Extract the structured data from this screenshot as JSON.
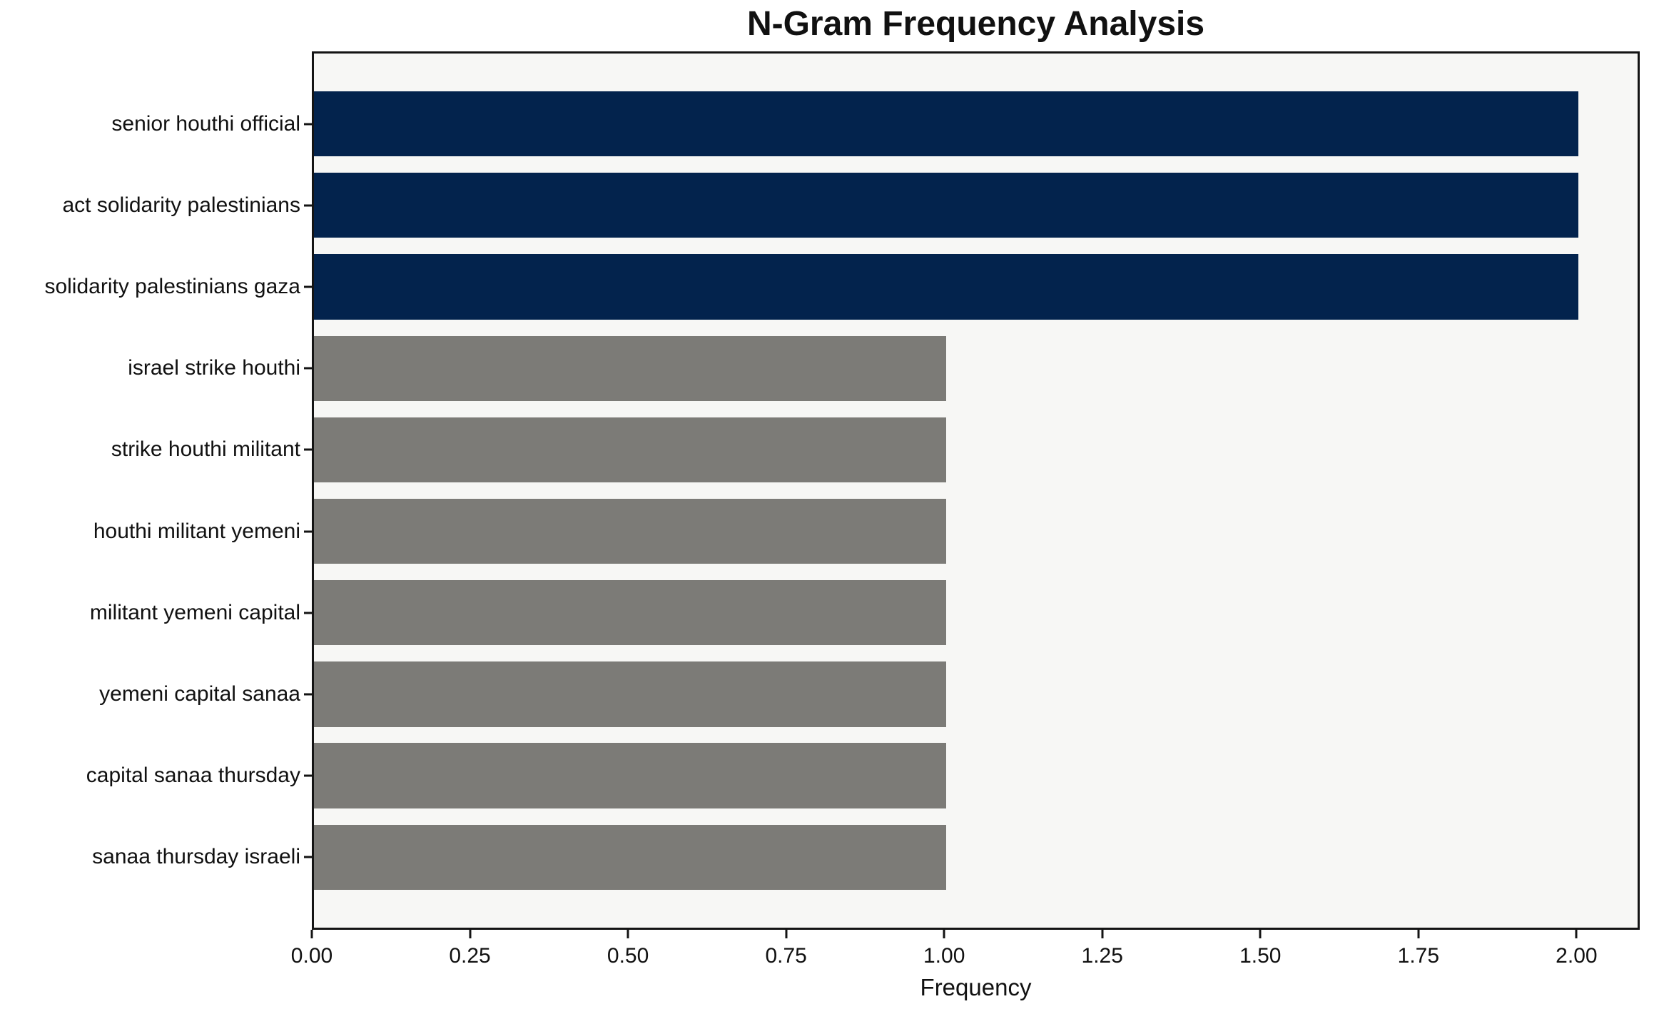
{
  "chart_data": {
    "type": "bar",
    "orientation": "horizontal",
    "title": "N-Gram Frequency Analysis",
    "xlabel": "Frequency",
    "ylabel": "",
    "categories": [
      "senior houthi official",
      "act solidarity palestinians",
      "solidarity palestinians gaza",
      "israel strike houthi",
      "strike houthi militant",
      "houthi militant yemeni",
      "militant yemeni capital",
      "yemeni capital sanaa",
      "capital sanaa thursday",
      "sanaa thursday israeli"
    ],
    "values": [
      2,
      2,
      2,
      1,
      1,
      1,
      1,
      1,
      1,
      1
    ],
    "colors": [
      "#03234D",
      "#03234D",
      "#03234D",
      "#7C7B77",
      "#7C7B77",
      "#7C7B77",
      "#7C7B77",
      "#7C7B77",
      "#7C7B77",
      "#7C7B77"
    ],
    "bar_color_legend": {
      "highlight": "#03234D",
      "default": "#7C7B77"
    },
    "xlim": [
      0,
      2.1
    ],
    "xticks": [
      {
        "value": 0.0,
        "label": "0.00"
      },
      {
        "value": 0.25,
        "label": "0.25"
      },
      {
        "value": 0.5,
        "label": "0.50"
      },
      {
        "value": 0.75,
        "label": "0.75"
      },
      {
        "value": 1.0,
        "label": "1.00"
      },
      {
        "value": 1.25,
        "label": "1.25"
      },
      {
        "value": 1.5,
        "label": "1.50"
      },
      {
        "value": 1.75,
        "label": "1.75"
      },
      {
        "value": 2.0,
        "label": "2.00"
      }
    ],
    "grid": false,
    "legend_position": "none",
    "plot_background": "#F7F7F5",
    "figure_background": "#FFFFFF",
    "spine_color": "#141414",
    "text_color": "#111111"
  }
}
